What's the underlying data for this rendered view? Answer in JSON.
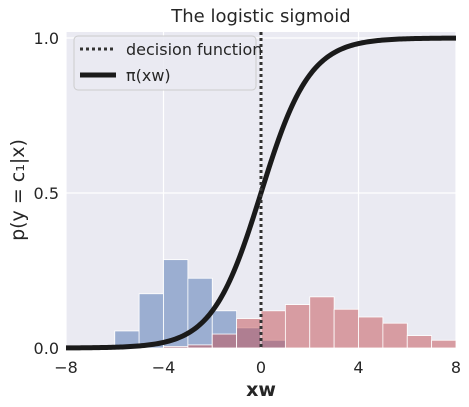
{
  "chart_data": {
    "type": "bar",
    "title": "The logistic sigmoid",
    "xlabel": "xw",
    "ylabel": "p(y = c₁|x)",
    "xlim": [
      -8,
      8
    ],
    "ylim": [
      0,
      1
    ],
    "xticks": [
      -8,
      -4,
      0,
      4,
      8
    ],
    "xtick_labels": [
      "−8",
      "−4",
      "0",
      "4",
      "8"
    ],
    "yticks": [
      0,
      0.5,
      1
    ],
    "ytick_labels": [
      "0.0",
      "0.5",
      "1.0"
    ],
    "grid": true,
    "background": "#eaeaf2",
    "legend": {
      "position": "top-left",
      "entries": [
        {
          "label": "decision function",
          "style": "dotted",
          "color": "#333333"
        },
        {
          "label": "π(xw)",
          "style": "solid",
          "color": "#1a1a1a"
        }
      ]
    },
    "series": [
      {
        "type": "histogram",
        "color": "#4c72b0",
        "opacity": 0.5,
        "bin_width": 1.0,
        "bins_start": [
          -6,
          -5,
          -4,
          -3,
          -2,
          -1,
          0
        ],
        "values": [
          0.055,
          0.175,
          0.285,
          0.225,
          0.12,
          0.065,
          0.025
        ]
      },
      {
        "type": "histogram",
        "color": "#c44e52",
        "opacity": 0.5,
        "bin_width": 1.0,
        "bins_start": [
          -4,
          -3,
          -2,
          -1,
          0,
          1,
          2,
          3,
          4,
          5,
          6,
          7
        ],
        "values": [
          0.005,
          0.01,
          0.045,
          0.095,
          0.12,
          0.14,
          0.165,
          0.125,
          0.1,
          0.08,
          0.04,
          0.025
        ]
      },
      {
        "type": "line",
        "name": "π(xw)",
        "function": "logistic",
        "color": "#1a1a1a",
        "linewidth": "thick"
      },
      {
        "type": "vline",
        "name": "decision function",
        "x": 0,
        "color": "#333333",
        "style": "dotted"
      }
    ]
  }
}
